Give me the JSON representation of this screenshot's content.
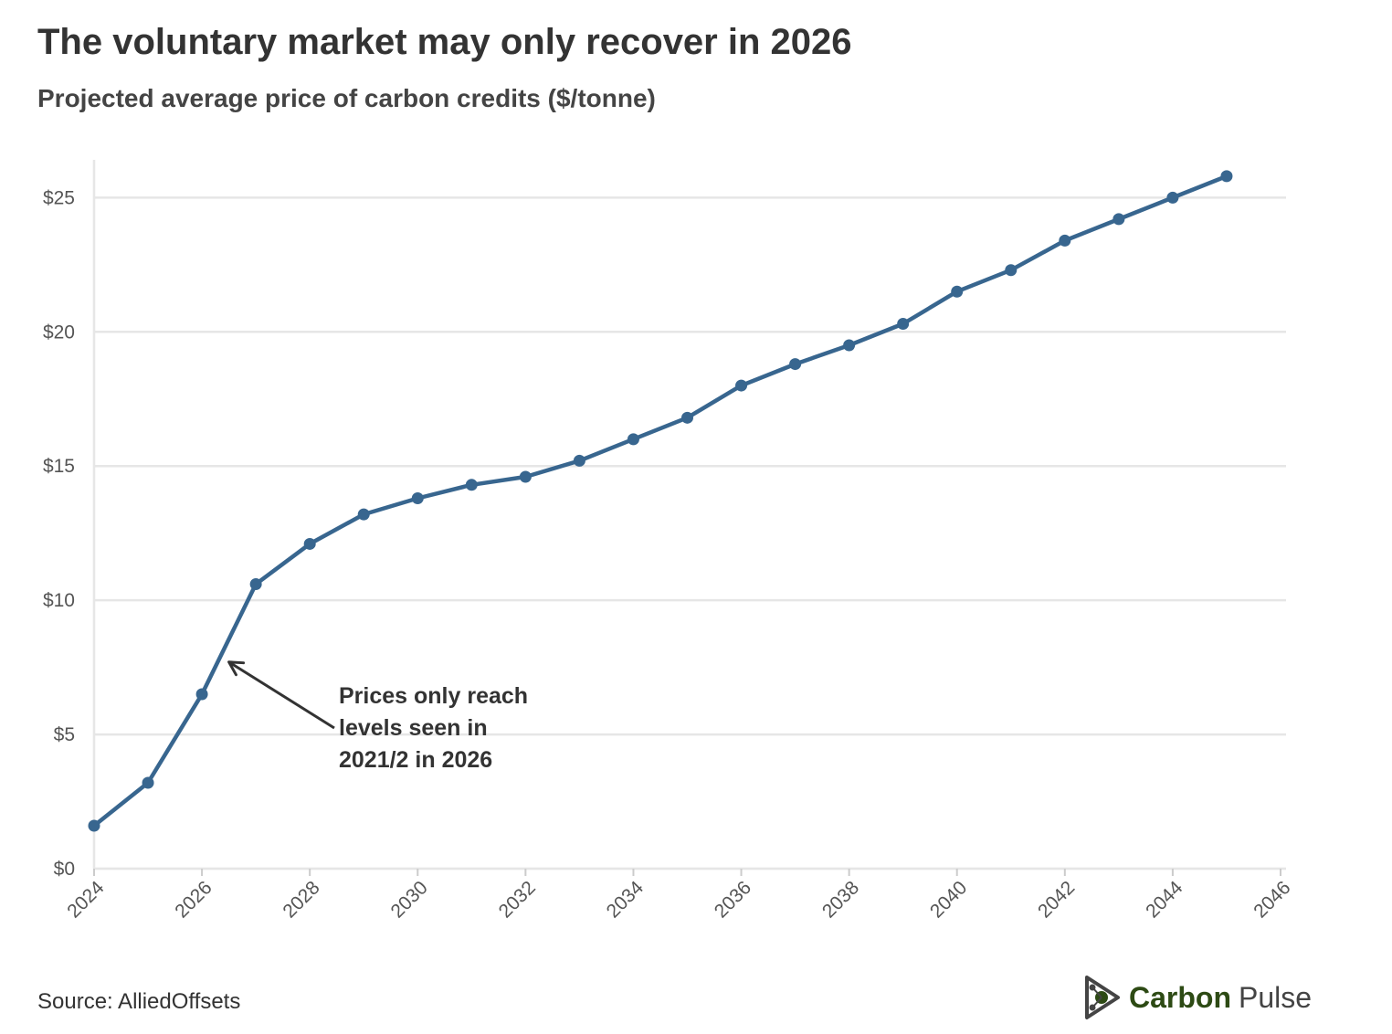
{
  "header": {
    "title": "The voluntary market may only recover in 2026",
    "subtitle": "Projected average price of carbon credits ($/tonne)"
  },
  "footer": {
    "source": "Source: AlliedOffsets",
    "brand_word_1": "Carbon",
    "brand_word_2": "Pulse"
  },
  "colors": {
    "series": "#38668f",
    "grid": "#e6e6e6",
    "brand_green": "#2d4a14"
  },
  "icons": {
    "brand": "carbon-pulse-logo-icon",
    "annotation": "arrow-icon"
  },
  "chart_data": {
    "type": "line",
    "title": "The voluntary market may only recover in 2026",
    "subtitle": "Projected average price of carbon credits ($/tonne)",
    "xlabel": "",
    "ylabel": "",
    "xlim": [
      2024,
      2046
    ],
    "ylim": [
      0,
      26
    ],
    "x_ticks": [
      2024,
      2026,
      2028,
      2030,
      2032,
      2034,
      2036,
      2038,
      2040,
      2042,
      2044,
      2046
    ],
    "y_ticks": [
      0,
      5,
      10,
      15,
      20,
      25
    ],
    "y_tick_labels": [
      "$0",
      "$5",
      "$10",
      "$15",
      "$20",
      "$25"
    ],
    "grid": true,
    "legend": false,
    "series": [
      {
        "name": "",
        "x": [
          2024,
          2025,
          2026,
          2027,
          2028,
          2029,
          2030,
          2031,
          2032,
          2033,
          2034,
          2035,
          2036,
          2037,
          2038,
          2039,
          2040,
          2041,
          2042,
          2043,
          2044,
          2045
        ],
        "values": [
          1.6,
          3.2,
          6.5,
          10.6,
          12.1,
          13.2,
          13.8,
          14.3,
          14.6,
          15.2,
          16.0,
          16.8,
          18.0,
          18.8,
          19.5,
          20.3,
          21.5,
          22.3,
          23.4,
          24.2,
          25.0,
          25.8
        ]
      }
    ],
    "annotations": [
      {
        "lines": [
          "Prices only reach",
          "levels seen in",
          "2021/2 in 2026"
        ],
        "points_to": {
          "x": 2026.5,
          "y": 7.7
        }
      }
    ]
  }
}
